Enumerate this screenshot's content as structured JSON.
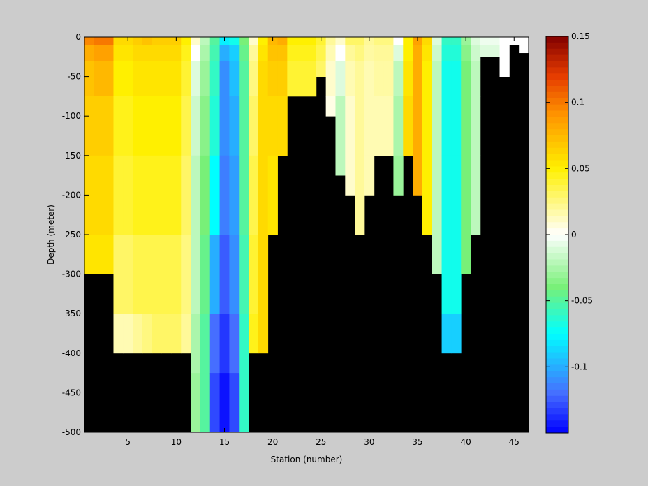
{
  "chart_data": {
    "type": "heatmap",
    "xlabel": "Station (number)",
    "ylabel": "Depth (meter)",
    "xlim": [
      1,
      47
    ],
    "ylim": [
      -500,
      0
    ],
    "x_ticks": [
      5,
      10,
      15,
      20,
      25,
      30,
      35,
      40,
      45
    ],
    "y_ticks": [
      0,
      -50,
      -100,
      -150,
      -200,
      -250,
      -300,
      -350,
      -400,
      -450,
      -500
    ],
    "colorbar": {
      "range": [
        -0.15,
        0.15
      ],
      "ticks": [
        0.15,
        0.1,
        0.05,
        0,
        -0.05,
        -0.1
      ],
      "tick_labels": [
        "0.15",
        "0.1",
        "0.05",
        "0",
        "-0.05",
        "-0.1"
      ],
      "colormap": "jet-white-center"
    },
    "stations": [
      1,
      2,
      3,
      4,
      5,
      6,
      7,
      8,
      9,
      10,
      11,
      12,
      13,
      14,
      15,
      16,
      17,
      18,
      19,
      20,
      21,
      22,
      23,
      24,
      25,
      26,
      27,
      28,
      29,
      30,
      31,
      32,
      33,
      34,
      35,
      36,
      37,
      38,
      39,
      40,
      41,
      42,
      43,
      44,
      45,
      46
    ],
    "station_bottom_depth": [
      -300,
      -300,
      -300,
      -400,
      -400,
      -400,
      -400,
      -400,
      -400,
      -400,
      -400,
      -500,
      -500,
      -500,
      -500,
      -500,
      -500,
      -400,
      -400,
      -250,
      -150,
      -75,
      -75,
      -75,
      -50,
      -100,
      -175,
      -200,
      -250,
      -200,
      -150,
      -150,
      -200,
      -150,
      -200,
      -250,
      -300,
      -400,
      -400,
      -300,
      -250,
      -25,
      -25,
      -50,
      -10,
      -20
    ],
    "profiles": [
      {
        "station": 1,
        "values": [
          0.095,
          0.08,
          0.07,
          0.065,
          0.06,
          0.055,
          0.05,
          0.045
        ]
      },
      {
        "station": 2,
        "values": [
          0.1,
          0.085,
          0.075,
          0.065,
          0.06,
          0.055,
          0.05,
          0.045
        ]
      },
      {
        "station": 3,
        "values": [
          0.1,
          0.085,
          0.075,
          0.065,
          0.06,
          0.055,
          0.05,
          0.045
        ]
      },
      {
        "station": 4,
        "values": [
          0.06,
          0.055,
          0.05,
          0.045,
          0.04,
          0.03,
          0.015,
          0.008
        ]
      },
      {
        "station": 5,
        "values": [
          0.06,
          0.055,
          0.05,
          0.045,
          0.04,
          0.03,
          0.015,
          0.008
        ]
      },
      {
        "station": 6,
        "values": [
          0.065,
          0.06,
          0.055,
          0.05,
          0.045,
          0.035,
          0.02,
          0.01
        ]
      },
      {
        "station": 7,
        "values": [
          0.07,
          0.06,
          0.055,
          0.05,
          0.045,
          0.035,
          0.025,
          0.015
        ]
      },
      {
        "station": 8,
        "values": [
          0.065,
          0.06,
          0.055,
          0.05,
          0.045,
          0.035,
          0.03,
          0.02
        ]
      },
      {
        "station": 9,
        "values": [
          0.065,
          0.06,
          0.055,
          0.05,
          0.045,
          0.035,
          0.03,
          0.025
        ]
      },
      {
        "station": 10,
        "values": [
          0.065,
          0.06,
          0.055,
          0.05,
          0.045,
          0.035,
          0.03,
          0.025
        ]
      },
      {
        "station": 11,
        "values": [
          0.05,
          0.045,
          0.04,
          0.035,
          0.03,
          0.025,
          0.02,
          0.015
        ]
      },
      {
        "station": 12,
        "values": [
          0.01,
          0.0,
          -0.01,
          -0.015,
          -0.02,
          -0.02,
          -0.025,
          -0.03
        ]
      },
      {
        "station": 13,
        "values": [
          -0.02,
          -0.025,
          -0.03,
          -0.035,
          -0.04,
          -0.045,
          -0.05,
          -0.05
        ]
      },
      {
        "station": 14,
        "values": [
          -0.05,
          -0.055,
          -0.06,
          -0.065,
          -0.075,
          -0.1,
          -0.12,
          -0.13
        ]
      },
      {
        "station": 15,
        "values": [
          -0.08,
          -0.1,
          -0.11,
          -0.11,
          -0.115,
          -0.125,
          -0.135,
          -0.145
        ]
      },
      {
        "station": 16,
        "values": [
          -0.07,
          -0.09,
          -0.095,
          -0.1,
          -0.105,
          -0.11,
          -0.12,
          -0.13
        ]
      },
      {
        "station": 17,
        "values": [
          -0.04,
          -0.045,
          -0.05,
          -0.05,
          -0.05,
          -0.055,
          -0.06,
          -0.06
        ]
      },
      {
        "station": 18,
        "values": [
          0.01,
          0.02,
          0.025,
          0.03,
          0.035,
          0.04,
          0.045,
          0.05
        ]
      },
      {
        "station": 19,
        "values": [
          0.05,
          0.055,
          0.06,
          0.06,
          0.06,
          0.06,
          0.06,
          0.06
        ]
      },
      {
        "station": 20,
        "values": [
          0.075,
          0.07,
          0.065,
          0.06,
          0.055,
          0.05,
          0.05,
          0.05
        ]
      },
      {
        "station": 21,
        "values": [
          0.08,
          0.07,
          0.065,
          0.06,
          0.06,
          0.06,
          0.06,
          0.06
        ]
      },
      {
        "station": 22,
        "values": [
          0.05,
          0.045,
          0.04,
          0.04,
          0.04,
          0.04,
          0.04,
          0.04
        ]
      },
      {
        "station": 23,
        "values": [
          0.05,
          0.045,
          0.04,
          0.035,
          0.035,
          0.035,
          0.035,
          0.035
        ]
      },
      {
        "station": 24,
        "values": [
          0.05,
          0.045,
          0.04,
          0.035,
          0.035,
          0.035,
          0.035,
          0.035
        ]
      },
      {
        "station": 25,
        "values": [
          0.04,
          0.035,
          0.03,
          0.03,
          0.03,
          0.03,
          0.03,
          0.03
        ]
      },
      {
        "station": 26,
        "values": [
          0.02,
          0.015,
          0.01,
          0.005,
          0.005,
          0.005,
          0.005,
          0.005
        ]
      },
      {
        "station": 27,
        "values": [
          0.01,
          0.0,
          -0.01,
          -0.02,
          -0.02,
          -0.02,
          -0.02,
          -0.02
        ]
      },
      {
        "station": 28,
        "values": [
          0.03,
          0.02,
          0.015,
          0.01,
          0.01,
          0.02,
          0.03,
          0.05
        ]
      },
      {
        "station": 29,
        "values": [
          0.03,
          0.025,
          0.02,
          0.02,
          0.02,
          0.02,
          0.02,
          0.02
        ]
      },
      {
        "station": 30,
        "values": [
          0.02,
          0.018,
          0.015,
          0.015,
          0.015,
          0.015,
          0.015,
          0.015
        ]
      },
      {
        "station": 31,
        "values": [
          0.025,
          0.02,
          0.018,
          0.015,
          0.015,
          0.015,
          0.015,
          0.015
        ]
      },
      {
        "station": 32,
        "values": [
          0.025,
          0.02,
          0.018,
          0.015,
          0.015,
          0.02,
          0.02,
          0.02
        ]
      },
      {
        "station": 33,
        "values": [
          0.0,
          -0.01,
          -0.02,
          -0.025,
          -0.03,
          -0.03,
          -0.03,
          -0.03
        ]
      },
      {
        "station": 34,
        "values": [
          0.05,
          0.05,
          0.055,
          0.06,
          0.06,
          0.06,
          0.06,
          0.06
        ]
      },
      {
        "station": 35,
        "values": [
          0.085,
          0.08,
          0.08,
          0.08,
          0.08,
          0.08,
          0.08,
          0.08
        ]
      },
      {
        "station": 36,
        "values": [
          0.06,
          0.055,
          0.05,
          0.05,
          0.05,
          0.05,
          0.05,
          0.05
        ]
      },
      {
        "station": 37,
        "values": [
          -0.01,
          -0.015,
          -0.02,
          -0.02,
          -0.02,
          -0.02,
          -0.02,
          -0.02
        ]
      },
      {
        "station": 38,
        "values": [
          -0.06,
          -0.065,
          -0.07,
          -0.07,
          -0.07,
          -0.07,
          -0.09,
          -0.1
        ]
      },
      {
        "station": 39,
        "values": [
          -0.06,
          -0.065,
          -0.07,
          -0.07,
          -0.07,
          -0.07,
          -0.09,
          -0.1
        ]
      },
      {
        "station": 40,
        "values": [
          -0.03,
          -0.035,
          -0.04,
          -0.04,
          -0.04,
          -0.04,
          -0.04,
          -0.04
        ]
      },
      {
        "station": 41,
        "values": [
          -0.01,
          -0.015,
          -0.02,
          -0.02,
          -0.02,
          -0.02,
          -0.02,
          -0.02
        ]
      },
      {
        "station": 42,
        "values": [
          -0.005,
          -0.01,
          -0.01,
          -0.01,
          -0.01,
          -0.01,
          -0.01,
          -0.01
        ]
      },
      {
        "station": 43,
        "values": [
          -0.005,
          -0.01,
          -0.01,
          -0.01,
          -0.01,
          -0.01,
          -0.01,
          -0.01
        ]
      },
      {
        "station": 44,
        "values": [
          0.0,
          0.0,
          0.0,
          0.0,
          0.0,
          0.0,
          0.0,
          0.0
        ]
      },
      {
        "station": 45,
        "values": [
          0.0,
          0.0,
          0.0,
          0.0,
          0.0,
          0.0,
          0.0,
          0.0
        ]
      },
      {
        "station": 46,
        "values": [
          0.0,
          0.0,
          0.0,
          0.0,
          0.0,
          0.0,
          0.0,
          0.0
        ]
      }
    ],
    "profile_depth_breaks": [
      0,
      -10,
      -30,
      -75,
      -150,
      -250,
      -350,
      -425,
      -500
    ],
    "missing_color": "#000000",
    "background_color": "#cccccc"
  }
}
